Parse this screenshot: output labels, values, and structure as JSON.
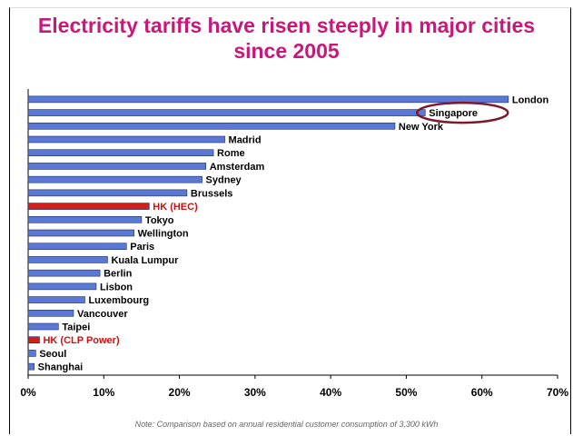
{
  "title": "Electricity tariffs have risen steeply in major cities\nsince 2005",
  "note": "Note: Comparison based on annual residential customer consumption of 3,300 kWh",
  "colors": {
    "title": "#c8187a",
    "bar": "#5b78d4",
    "highlight": "#d0201c",
    "highlight_label": "#cc1111",
    "circle": "#7a1a2a"
  },
  "chart_data": {
    "type": "bar",
    "orientation": "horizontal",
    "categories": [
      "London",
      "Singapore",
      "New York",
      "Madrid",
      "Rome",
      "Amsterdam",
      "Sydney",
      "Brussels",
      "HK (HEC)",
      "Tokyo",
      "Wellington",
      "Paris",
      "Kuala Lumpur",
      "Berlin",
      "Lisbon",
      "Luxembourg",
      "Vancouver",
      "Taipei",
      "HK (CLP Power)",
      "Seoul",
      "Shanghai"
    ],
    "values": [
      63.5,
      52.5,
      48.5,
      26,
      24.5,
      23.5,
      23,
      21,
      16,
      15,
      14,
      13,
      10.5,
      9.5,
      9,
      7.5,
      6,
      4,
      1.5,
      1,
      0.8
    ],
    "highlighted": [
      "HK (HEC)",
      "HK (CLP Power)"
    ],
    "circled": "Singapore",
    "xticks": [
      "0%",
      "10%",
      "20%",
      "30%",
      "40%",
      "50%",
      "60%",
      "70%"
    ],
    "xlim": [
      0,
      70
    ],
    "unit": "%",
    "grid": false
  }
}
